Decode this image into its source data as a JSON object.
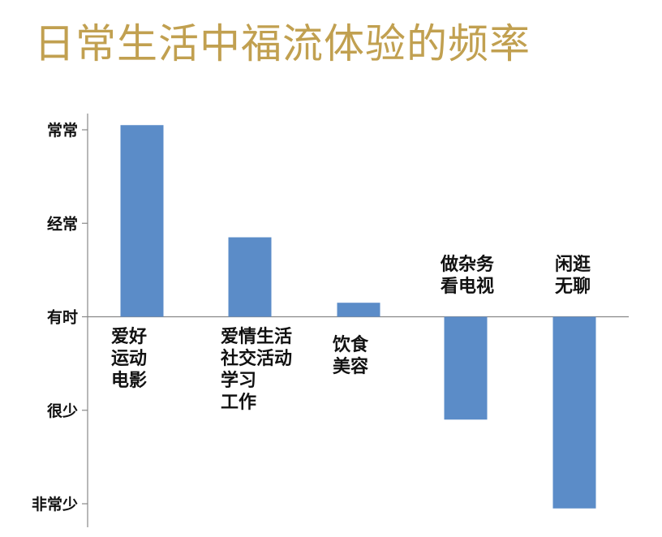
{
  "chart_data": {
    "type": "bar",
    "title": "日常生活中福流体验的频率",
    "y_levels": [
      "非常少",
      "很少",
      "有时",
      "经常",
      "常常"
    ],
    "y_range": [
      -2,
      2
    ],
    "categories": [
      {
        "lines": [
          "爱好",
          "运动",
          "电影"
        ]
      },
      {
        "lines": [
          "爱情生活",
          "社交活动",
          "学习",
          "工作"
        ]
      },
      {
        "lines": [
          "饮食",
          "美容"
        ]
      },
      {
        "lines": [
          "做杂务",
          "看电视"
        ]
      },
      {
        "lines": [
          "闲逛",
          "无聊"
        ]
      }
    ],
    "values": [
      2.05,
      0.85,
      0.15,
      -1.1,
      -2.05
    ],
    "colors": {
      "bar": "#5b8cc8",
      "title": "#c1a050",
      "axis": "#888888"
    }
  }
}
